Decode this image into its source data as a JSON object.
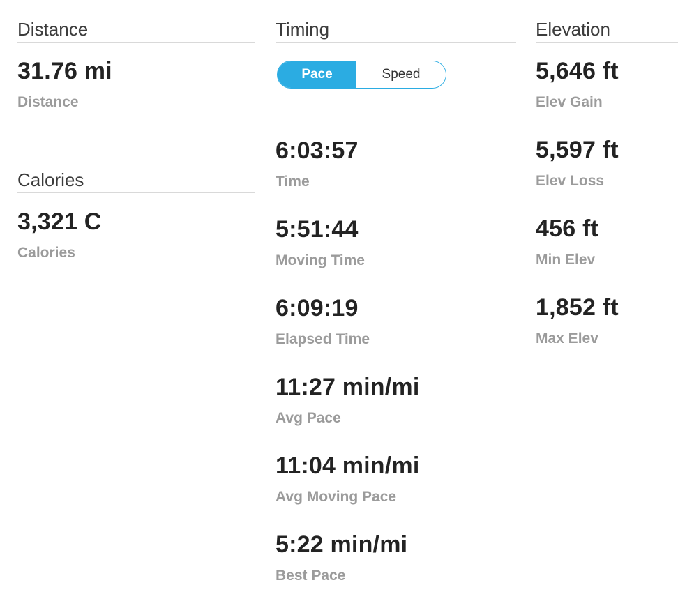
{
  "accent_color": "#2bace2",
  "distance_section": {
    "title": "Distance",
    "stat": {
      "value": "31.76 mi",
      "label": "Distance"
    }
  },
  "calories_section": {
    "title": "Calories",
    "stat": {
      "value": "3,321 C",
      "label": "Calories"
    }
  },
  "timing_section": {
    "title": "Timing",
    "toggle": {
      "selected": "Pace",
      "options": [
        {
          "label": "Pace"
        },
        {
          "label": "Speed"
        }
      ]
    },
    "stats": [
      {
        "value": "6:03:57",
        "label": "Time"
      },
      {
        "value": "5:51:44",
        "label": "Moving Time"
      },
      {
        "value": "6:09:19",
        "label": "Elapsed Time"
      },
      {
        "value": "11:27 min/mi",
        "label": "Avg Pace"
      },
      {
        "value": "11:04 min/mi",
        "label": "Avg Moving Pace"
      },
      {
        "value": "5:22 min/mi",
        "label": "Best Pace"
      }
    ]
  },
  "elevation_section": {
    "title": "Elevation",
    "stats": [
      {
        "value": "5,646 ft",
        "label": "Elev Gain"
      },
      {
        "value": "5,597 ft",
        "label": "Elev Loss"
      },
      {
        "value": "456 ft",
        "label": "Min Elev"
      },
      {
        "value": "1,852 ft",
        "label": "Max Elev"
      }
    ]
  }
}
